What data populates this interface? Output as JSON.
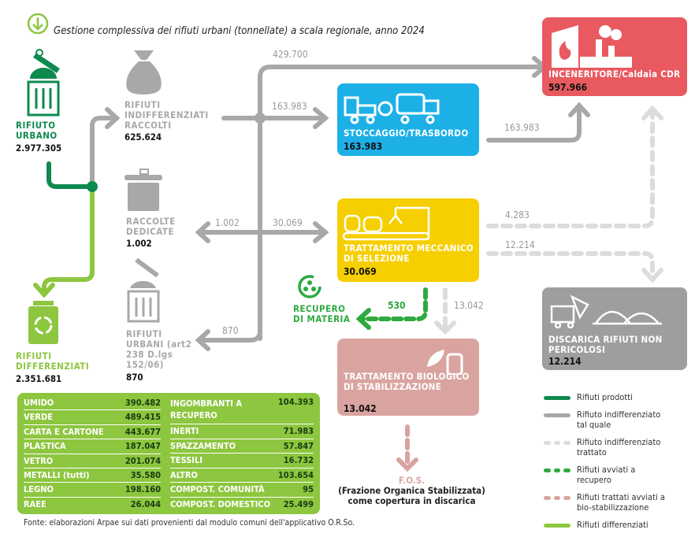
{
  "title": "Gestione complessiva dei rifiuti urbani (tonnellate) a scala regionale, anno 2024",
  "colors": {
    "dark_green": "#0e8a4f",
    "light_green": "#8dc63f",
    "grey": "#a8a8a8",
    "light_grey": "#dcdcdc",
    "recovery_green": "#2eaa3f",
    "pink": "#d9a4a0",
    "blue": "#1cb0e6",
    "yellow": "#f6cf00",
    "red": "#e85a60",
    "dark_grey": "#9e9e9e"
  },
  "nodes": {
    "rifiuto_urbano": {
      "label": "RIFIUTO URBANO",
      "value": "2.977.305",
      "icon": "trash-bin-icon"
    },
    "indifferenziati": {
      "label": "RIFIUTI INDIFFERENZIATI RACCOLTI",
      "value": "625.624",
      "icon": "garbage-bag-icon"
    },
    "raccolte_dedicate": {
      "label": "RACCOLTE DEDICATE",
      "value": "1.002",
      "icon": "bin-icon"
    },
    "rifiuti_urbani_art": {
      "label": "RIFIUTI URBANI (art2 238 D.lgs 152/06)",
      "value": "870",
      "icon": "trash-bin-icon"
    },
    "differenziati": {
      "label": "RIFIUTI DIFFERENZIATI",
      "value": "2.351.681",
      "icon": "recycle-bin-icon"
    },
    "stoccaggio": {
      "label": "STOCCAGGIO/TRASBORDO",
      "value": "163.983",
      "icon": "truck-icon"
    },
    "inceneritore": {
      "label": "INCENERITORE/Caldaia CDR",
      "value": "597.966",
      "icon": "factory-icon"
    },
    "tmb": {
      "label": "TRATTAMENTO MECCANICO DI SELEZIONE",
      "value": "30.069",
      "icon": "conveyor-icon"
    },
    "biologico": {
      "label": "TRATTAMENTO BIOLOGICO DI STABILIZZAZIONE",
      "value": "13.042",
      "icon": "leaf-tank-icon"
    },
    "discarica": {
      "label": "DISCARICA RIFIUTI NON PERICOLOSI",
      "value": "12.214",
      "icon": "landfill-icon"
    },
    "recupero": {
      "label": "RECUPERO DI MATERIA",
      "icon": "recovery-icon"
    },
    "fos": {
      "title": "F.O.S.",
      "desc": "(Frazione Organica Stabilizzata) come copertura in discarica"
    }
  },
  "flows": {
    "to_inceneritore": "429.700",
    "to_stoccaggio": "163.983",
    "stoccaggio_to_inc": "163.983",
    "to_dedicate": "1.002",
    "to_tmb": "30.069",
    "to_urbani_art": "870",
    "tmb_to_inc": "4.283",
    "tmb_to_discarica": "12.214",
    "tmb_to_recupero": "530",
    "tmb_to_bio": "13.042"
  },
  "materials_left": [
    {
      "name": "UMIDO",
      "value": "390.482"
    },
    {
      "name": "VERDE",
      "value": "489.415"
    },
    {
      "name": "CARTA E CARTONE",
      "value": "443.677"
    },
    {
      "name": "PLASTICA",
      "value": "187.047"
    },
    {
      "name": "VETRO",
      "value": "201.074"
    },
    {
      "name": "METALLI (tutti)",
      "value": "35.580"
    },
    {
      "name": "LEGNO",
      "value": "198.160"
    },
    {
      "name": "RAEE",
      "value": "26.044"
    }
  ],
  "materials_right": [
    {
      "name": "INGOMBRANTI A RECUPERO",
      "value": "104.393"
    },
    {
      "name": "INERTI",
      "value": "71.983"
    },
    {
      "name": "SPAZZAMENTO",
      "value": "57.847"
    },
    {
      "name": "TESSILI",
      "value": "16.732"
    },
    {
      "name": "ALTRO",
      "value": "103.654"
    },
    {
      "name": "COMPOST. COMUNITÀ",
      "value": "95"
    },
    {
      "name": "COMPOST. DOMESTICO",
      "value": "25.499"
    }
  ],
  "legend": [
    {
      "label": "Rifiuti prodotti",
      "style": "solid",
      "color": "#0e8a4f"
    },
    {
      "label": "Rifiuto indifferenziato tal quale",
      "style": "solid",
      "color": "#a8a8a8"
    },
    {
      "label": "Rifiuto indifferenziato trattato",
      "style": "dashed",
      "color": "#dcdcdc"
    },
    {
      "label": "Rifiuti avviati a recupero",
      "style": "dashed",
      "color": "#2eaa3f"
    },
    {
      "label": "Rifiuti trattati avviati a bio-stabilizzazione",
      "style": "dashed",
      "color": "#d9a4a0"
    },
    {
      "label": "Rifiuti differenziati",
      "style": "solid",
      "color": "#8dc63f"
    }
  ],
  "footer": "Fonte: elaborazioni Arpae sui dati provenienti dal modulo comuni dell'applicativo O.R.So."
}
